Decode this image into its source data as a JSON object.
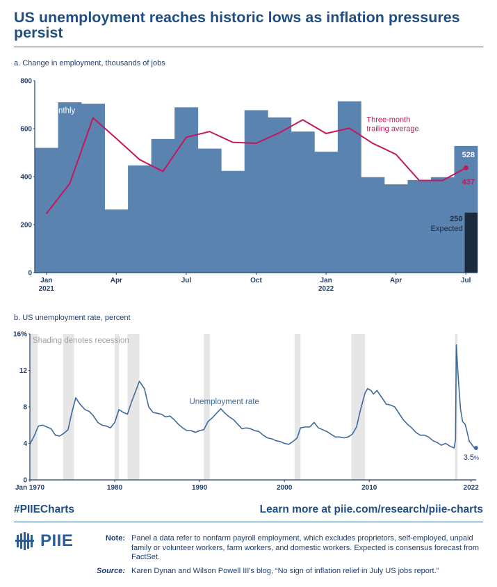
{
  "title": "US unemployment reaches historic lows as inflation pressures persist",
  "panel_a": {
    "label": "a. Change in employment, thousands of jobs"
  },
  "panel_b": {
    "label": "b. US unemployment rate, percent"
  },
  "chart_data": [
    {
      "type": "bar",
      "title": "a. Change in employment, thousands of jobs",
      "categories": [
        "Jan 2021",
        "Feb 2021",
        "Mar 2021",
        "Apr 2021",
        "May 2021",
        "Jun 2021",
        "Jul 2021",
        "Aug 2021",
        "Sep 2021",
        "Oct 2021",
        "Nov 2021",
        "Dec 2021",
        "Jan 2022",
        "Feb 2022",
        "Mar 2022",
        "Apr 2022",
        "May 2022",
        "Jun 2022",
        "Jul 2022"
      ],
      "tick_labels": [
        {
          "index": 0,
          "text": "Jan",
          "sub": "2021"
        },
        {
          "index": 3,
          "text": "Apr",
          "sub": ""
        },
        {
          "index": 6,
          "text": "Jul",
          "sub": ""
        },
        {
          "index": 9,
          "text": "Oct",
          "sub": ""
        },
        {
          "index": 12,
          "text": "Jan",
          "sub": "2022"
        },
        {
          "index": 15,
          "text": "Apr",
          "sub": ""
        },
        {
          "index": 18,
          "text": "Jul",
          "sub": ""
        }
      ],
      "ylim": [
        0,
        800
      ],
      "yticks": [
        0,
        200,
        400,
        600,
        800
      ],
      "series": [
        {
          "name": "Monthly",
          "kind": "bar",
          "color": "#5b83b0",
          "values": [
            520,
            710,
            704,
            263,
            447,
            557,
            689,
            517,
            424,
            677,
            647,
            588,
            504,
            714,
            398,
            368,
            386,
            398,
            528
          ]
        },
        {
          "name": "Three-month trailing average",
          "kind": "line",
          "color": "#c2185b",
          "values": [
            246,
            371,
            645,
            559,
            471,
            422,
            564,
            588,
            543,
            539,
            583,
            637,
            580,
            602,
            539,
            493,
            384,
            384,
            437
          ]
        },
        {
          "name": "Expected",
          "kind": "bar",
          "color": "#1b2b3c",
          "values": [
            null,
            null,
            null,
            null,
            null,
            null,
            null,
            null,
            null,
            null,
            null,
            null,
            null,
            null,
            null,
            null,
            null,
            null,
            250
          ]
        }
      ],
      "annotations": {
        "monthly": "Monthly",
        "trailing_line1": "Three-month",
        "trailing_line2": "trailing average",
        "last_value": "528",
        "avg_value": "437",
        "expected_value": "250",
        "expected_label": "Expected"
      }
    },
    {
      "type": "line",
      "title": "b. US unemployment rate, percent",
      "xlim": [
        1970,
        2022.6
      ],
      "ylim": [
        0,
        16
      ],
      "yticks": [
        0,
        4,
        8,
        12,
        16
      ],
      "ytick_labels": [
        "0",
        "4",
        "8",
        "12",
        "16%"
      ],
      "xticks": [
        {
          "x": 1970,
          "label": "Jan 1970"
        },
        {
          "x": 1980,
          "label": "1980"
        },
        {
          "x": 1990,
          "label": "1990"
        },
        {
          "x": 2000,
          "label": "2000"
        },
        {
          "x": 2010,
          "label": "2010"
        },
        {
          "x": 2022,
          "label": "2022"
        }
      ],
      "recessions": [
        [
          1970.0,
          1970.9
        ],
        [
          1973.9,
          1975.2
        ],
        [
          1980.0,
          1980.5
        ],
        [
          1981.5,
          1982.9
        ],
        [
          1990.5,
          1991.2
        ],
        [
          2001.2,
          2001.9
        ],
        [
          2007.9,
          2009.5
        ],
        [
          2020.1,
          2020.4
        ]
      ],
      "recession_note": "Shading denotes recession",
      "series_label": "Unemployment rate",
      "last_label": "3.5",
      "last_unit": "%",
      "color": "#3d6a9a",
      "points": [
        [
          1970.0,
          3.9
        ],
        [
          1970.5,
          4.8
        ],
        [
          1971.0,
          5.9
        ],
        [
          1971.5,
          6.0
        ],
        [
          1972.0,
          5.8
        ],
        [
          1972.5,
          5.6
        ],
        [
          1973.0,
          4.9
        ],
        [
          1973.5,
          4.8
        ],
        [
          1974.0,
          5.1
        ],
        [
          1974.5,
          5.5
        ],
        [
          1974.9,
          7.2
        ],
        [
          1975.4,
          9.0
        ],
        [
          1975.9,
          8.3
        ],
        [
          1976.5,
          7.7
        ],
        [
          1977.0,
          7.5
        ],
        [
          1977.5,
          7.0
        ],
        [
          1978.0,
          6.3
        ],
        [
          1978.5,
          6.0
        ],
        [
          1979.0,
          5.9
        ],
        [
          1979.5,
          5.7
        ],
        [
          1980.0,
          6.3
        ],
        [
          1980.5,
          7.7
        ],
        [
          1981.0,
          7.4
        ],
        [
          1981.5,
          7.2
        ],
        [
          1982.0,
          8.6
        ],
        [
          1982.5,
          9.8
        ],
        [
          1982.9,
          10.8
        ],
        [
          1983.5,
          10.0
        ],
        [
          1984.0,
          8.0
        ],
        [
          1984.5,
          7.4
        ],
        [
          1985.0,
          7.3
        ],
        [
          1985.5,
          7.2
        ],
        [
          1986.0,
          6.9
        ],
        [
          1986.5,
          7.0
        ],
        [
          1987.0,
          6.6
        ],
        [
          1987.5,
          6.1
        ],
        [
          1988.0,
          5.7
        ],
        [
          1988.5,
          5.4
        ],
        [
          1989.0,
          5.4
        ],
        [
          1989.5,
          5.2
        ],
        [
          1990.0,
          5.4
        ],
        [
          1990.5,
          5.5
        ],
        [
          1991.0,
          6.4
        ],
        [
          1991.5,
          6.8
        ],
        [
          1992.0,
          7.3
        ],
        [
          1992.5,
          7.8
        ],
        [
          1993.0,
          7.3
        ],
        [
          1993.5,
          6.9
        ],
        [
          1994.0,
          6.6
        ],
        [
          1994.5,
          6.1
        ],
        [
          1995.0,
          5.6
        ],
        [
          1995.5,
          5.7
        ],
        [
          1996.0,
          5.6
        ],
        [
          1996.5,
          5.4
        ],
        [
          1997.0,
          5.3
        ],
        [
          1997.5,
          4.9
        ],
        [
          1998.0,
          4.6
        ],
        [
          1998.5,
          4.5
        ],
        [
          1999.0,
          4.3
        ],
        [
          1999.5,
          4.2
        ],
        [
          2000.0,
          4.0
        ],
        [
          2000.5,
          3.9
        ],
        [
          2001.0,
          4.2
        ],
        [
          2001.5,
          4.6
        ],
        [
          2001.9,
          5.7
        ],
        [
          2002.5,
          5.8
        ],
        [
          2003.0,
          5.8
        ],
        [
          2003.5,
          6.3
        ],
        [
          2004.0,
          5.7
        ],
        [
          2004.5,
          5.5
        ],
        [
          2005.0,
          5.3
        ],
        [
          2005.5,
          5.0
        ],
        [
          2006.0,
          4.7
        ],
        [
          2006.5,
          4.7
        ],
        [
          2007.0,
          4.6
        ],
        [
          2007.5,
          4.7
        ],
        [
          2008.0,
          5.0
        ],
        [
          2008.5,
          5.8
        ],
        [
          2009.0,
          7.8
        ],
        [
          2009.5,
          9.5
        ],
        [
          2009.8,
          10.0
        ],
        [
          2010.2,
          9.8
        ],
        [
          2010.5,
          9.4
        ],
        [
          2010.9,
          9.8
        ],
        [
          2011.5,
          9.0
        ],
        [
          2012.0,
          8.3
        ],
        [
          2012.5,
          8.2
        ],
        [
          2013.0,
          8.0
        ],
        [
          2013.5,
          7.3
        ],
        [
          2014.0,
          6.6
        ],
        [
          2014.5,
          6.1
        ],
        [
          2015.0,
          5.7
        ],
        [
          2015.5,
          5.2
        ],
        [
          2016.0,
          4.9
        ],
        [
          2016.5,
          4.9
        ],
        [
          2017.0,
          4.7
        ],
        [
          2017.5,
          4.3
        ],
        [
          2018.0,
          4.1
        ],
        [
          2018.5,
          3.8
        ],
        [
          2019.0,
          4.0
        ],
        [
          2019.5,
          3.7
        ],
        [
          2020.0,
          3.5
        ],
        [
          2020.17,
          4.4
        ],
        [
          2020.26,
          14.8
        ],
        [
          2020.5,
          11.1
        ],
        [
          2020.75,
          7.8
        ],
        [
          2021.0,
          6.4
        ],
        [
          2021.3,
          6.1
        ],
        [
          2021.5,
          5.4
        ],
        [
          2021.8,
          4.2
        ],
        [
          2022.0,
          4.0
        ],
        [
          2022.3,
          3.6
        ],
        [
          2022.58,
          3.5
        ]
      ]
    }
  ],
  "footer": {
    "hashtag": "#PIIECharts",
    "learn_more": "Learn more at piie.com/research/piie-charts",
    "logo_text": "PIIE",
    "note_label": "Note:",
    "note_text": "Panel a data refer to nonfarm payroll employment, which excludes proprietors, self-employed, unpaid family or volunteer workers, farm workers, and domestic workers. Expected is consensus forecast from FactSet.",
    "source_label": "Source:",
    "source_text": "Karen Dynan and Wilson Powell III's blog, “No sign of inflation relief in July US jobs report.”"
  },
  "colors": {
    "title": "#1f4e85",
    "bar": "#5b83b0",
    "avg": "#c2185b",
    "expected": "#1b2b3c",
    "line": "#3d6a9a",
    "recession": "#e6e6e6"
  }
}
